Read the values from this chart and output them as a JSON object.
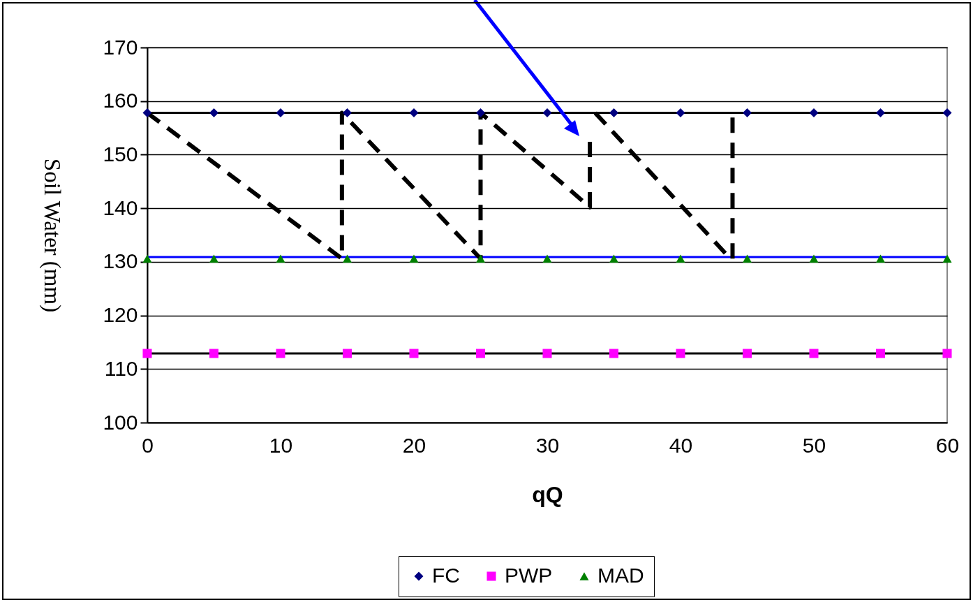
{
  "chart_data": {
    "type": "scatter",
    "xlabel": "qQ",
    "ylabel": "Soil Water (mm)",
    "xlim": [
      0,
      60
    ],
    "xticks": [
      0,
      10,
      20,
      30,
      40,
      50,
      60
    ],
    "ylim": [
      100,
      170
    ],
    "yticks": [
      100,
      110,
      120,
      130,
      140,
      150,
      160,
      170
    ],
    "grid": "y",
    "legend": "bottom",
    "series": [
      {
        "name": "FC",
        "marker": "diamond",
        "color": "#000080",
        "x": [
          0,
          5,
          10,
          15,
          20,
          25,
          30,
          35,
          40,
          45,
          50,
          55,
          60
        ],
        "values": [
          157.8,
          157.8,
          157.8,
          157.8,
          157.8,
          157.8,
          157.8,
          157.8,
          157.8,
          157.8,
          157.8,
          157.8,
          157.8
        ]
      },
      {
        "name": "PWP",
        "marker": "square",
        "color": "#ff00ff",
        "x": [
          0,
          5,
          10,
          15,
          20,
          25,
          30,
          35,
          40,
          45,
          50,
          55,
          60
        ],
        "values": [
          112.9,
          112.9,
          112.9,
          112.9,
          112.9,
          112.9,
          112.9,
          112.9,
          112.9,
          112.9,
          112.9,
          112.9,
          112.9
        ]
      },
      {
        "name": "MAD",
        "marker": "triangle",
        "color": "#008000",
        "x": [
          0,
          5,
          10,
          15,
          20,
          25,
          30,
          35,
          40,
          45,
          50,
          55,
          60
        ],
        "values": [
          130.6,
          130.6,
          130.6,
          130.6,
          130.6,
          130.6,
          130.6,
          130.6,
          130.6,
          130.6,
          130.6,
          130.6,
          130.6
        ]
      },
      {
        "type": "line",
        "color": "#000000",
        "line_style": "solid",
        "x": [
          0,
          60
        ],
        "values": [
          157.8,
          157.8
        ]
      },
      {
        "type": "line",
        "color": "#000000",
        "line_style": "solid",
        "x": [
          0,
          60
        ],
        "values": [
          112.9,
          112.9
        ]
      },
      {
        "type": "line",
        "color": "#0000ff",
        "line_style": "solid",
        "x": [
          0,
          60
        ],
        "values": [
          130.9,
          130.9
        ]
      },
      {
        "type": "line",
        "color": "#000000",
        "line_style": "dashed",
        "x": [
          0,
          14.6,
          14.6,
          25,
          25,
          33.2,
          33.2
        ],
        "values": [
          157.8,
          130.6,
          157.8,
          130.6,
          157.8,
          140.2,
          153
        ]
      },
      {
        "type": "line",
        "color": "#000000",
        "line_style": "dashed",
        "x": [
          33.6,
          43.4
        ],
        "values": [
          157.8,
          131.5
        ]
      },
      {
        "type": "line",
        "color": "#000000",
        "line_style": "dashed",
        "x": [
          43.9,
          43.9
        ],
        "values": [
          130.6,
          157.8
        ]
      }
    ]
  }
}
